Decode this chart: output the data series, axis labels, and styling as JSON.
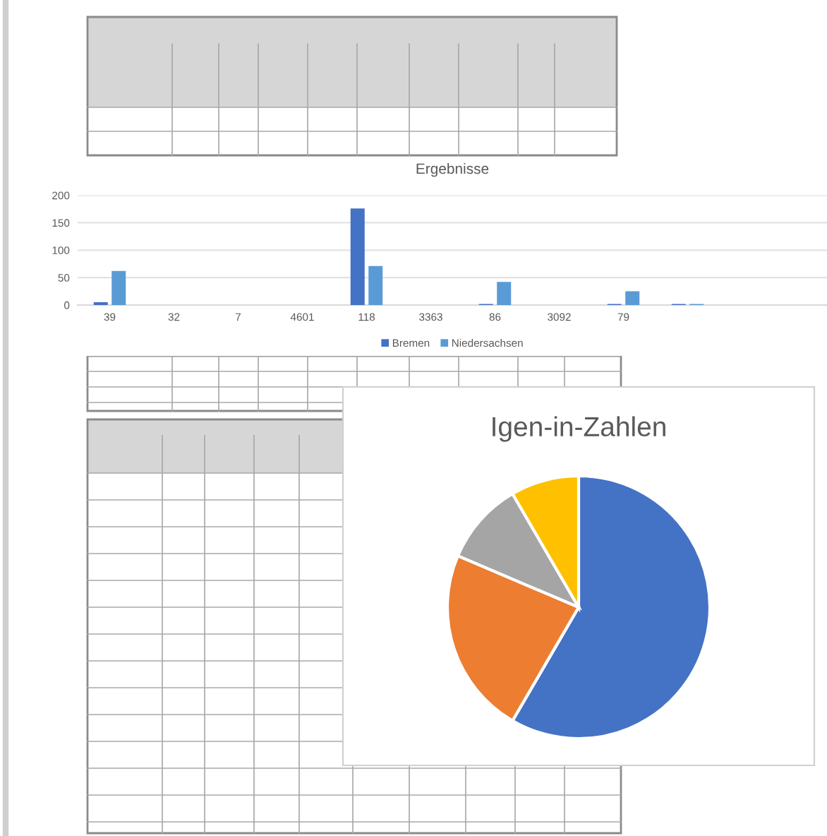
{
  "chart_data": [
    {
      "type": "bar",
      "title": "Ergebnisse",
      "categories": [
        "39",
        "32",
        "7",
        "4601",
        "118",
        "3363",
        "86",
        "3092",
        "79",
        null,
        null
      ],
      "series": [
        {
          "name": "Bremen",
          "color": "#4472c4",
          "values": [
            5,
            null,
            null,
            null,
            176,
            null,
            2,
            null,
            2,
            2,
            null
          ]
        },
        {
          "name": "Niedersachsen",
          "color": "#5b9bd5",
          "values": [
            62,
            null,
            null,
            null,
            71,
            null,
            42,
            null,
            25,
            2,
            null
          ]
        }
      ],
      "ylim": [
        0,
        200
      ],
      "yticks": [
        0,
        50,
        100,
        150,
        200
      ],
      "grid": "y",
      "legend": "bottom"
    },
    {
      "type": "pie",
      "title": "Igen-in-Zahlen",
      "categories": [
        null,
        null,
        null,
        null
      ],
      "values": [
        58.4,
        23.0,
        10.2,
        8.4
      ],
      "colors": [
        "#4472c4",
        "#ed7d31",
        "#a5a5a5",
        "#ffc000"
      ]
    }
  ]
}
